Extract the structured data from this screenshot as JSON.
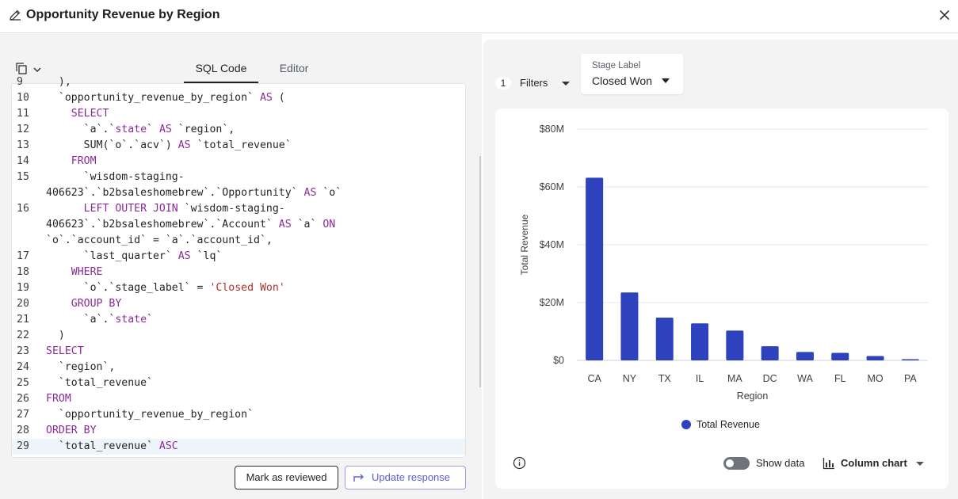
{
  "header": {
    "title": "Opportunity Revenue by Region"
  },
  "tabs": [
    {
      "label": "SQL Code",
      "active": true
    },
    {
      "label": "Editor",
      "active": false
    }
  ],
  "code": {
    "lines": [
      {
        "n": "9",
        "t": [
          [
            "  ),",
            "id"
          ]
        ]
      },
      {
        "n": "10",
        "t": [
          [
            "  `opportunity_revenue_by_region` ",
            "id"
          ],
          [
            "AS",
            "kw"
          ],
          [
            " (",
            "id"
          ]
        ]
      },
      {
        "n": "11",
        "t": [
          [
            "    ",
            "id"
          ],
          [
            "SELECT",
            "kw"
          ]
        ]
      },
      {
        "n": "12",
        "t": [
          [
            "      `a`.`",
            "id"
          ],
          [
            "state",
            "kw"
          ],
          [
            "` ",
            "id"
          ],
          [
            "AS",
            "kw"
          ],
          [
            " `region`,",
            "id"
          ]
        ]
      },
      {
        "n": "13",
        "t": [
          [
            "      SUM(`o`.`acv`) ",
            "id"
          ],
          [
            "AS",
            "kw"
          ],
          [
            " `total_revenue`",
            "id"
          ]
        ]
      },
      {
        "n": "14",
        "t": [
          [
            "    ",
            "id"
          ],
          [
            "FROM",
            "kw"
          ]
        ]
      },
      {
        "n": "15",
        "t": [
          [
            "      `wisdom-staging-",
            "id"
          ]
        ]
      },
      {
        "n": "",
        "t": [
          [
            "406623`.`b2bsaleshomebrew`.`Opportunity` ",
            "id"
          ],
          [
            "AS",
            "kw"
          ],
          [
            " `o`",
            "id"
          ]
        ]
      },
      {
        "n": "16",
        "t": [
          [
            "      ",
            "id"
          ],
          [
            "LEFT OUTER JOIN",
            "kw"
          ],
          [
            " `wisdom-staging-",
            "id"
          ]
        ]
      },
      {
        "n": "",
        "t": [
          [
            "406623`.`b2bsaleshomebrew`.`Account` ",
            "id"
          ],
          [
            "AS",
            "kw"
          ],
          [
            " `a` ",
            "id"
          ],
          [
            "ON",
            "kw"
          ]
        ]
      },
      {
        "n": "",
        "t": [
          [
            "`o`.`account_id` = `a`.`account_id`,",
            "id"
          ]
        ]
      },
      {
        "n": "17",
        "t": [
          [
            "      `last_quarter` ",
            "id"
          ],
          [
            "AS",
            "kw"
          ],
          [
            " `lq`",
            "id"
          ]
        ]
      },
      {
        "n": "18",
        "t": [
          [
            "    ",
            "id"
          ],
          [
            "WHERE",
            "kw"
          ]
        ]
      },
      {
        "n": "19",
        "t": [
          [
            "      `o`.`stage_label` = ",
            "id"
          ],
          [
            "'Closed Won'",
            "str"
          ]
        ]
      },
      {
        "n": "20",
        "t": [
          [
            "    ",
            "id"
          ],
          [
            "GROUP BY",
            "kw"
          ]
        ]
      },
      {
        "n": "21",
        "t": [
          [
            "      `a`.`",
            "id"
          ],
          [
            "state",
            "kw"
          ],
          [
            "`",
            "id"
          ]
        ]
      },
      {
        "n": "22",
        "t": [
          [
            "  )",
            "id"
          ]
        ]
      },
      {
        "n": "23",
        "t": [
          [
            "SELECT",
            "kw"
          ]
        ]
      },
      {
        "n": "24",
        "t": [
          [
            "  `region`,",
            "id"
          ]
        ]
      },
      {
        "n": "25",
        "t": [
          [
            "  `total_revenue`",
            "id"
          ]
        ]
      },
      {
        "n": "26",
        "t": [
          [
            "FROM",
            "kw"
          ]
        ]
      },
      {
        "n": "27",
        "t": [
          [
            "  `opportunity_revenue_by_region`",
            "id"
          ]
        ]
      },
      {
        "n": "28",
        "t": [
          [
            "ORDER BY",
            "kw"
          ]
        ]
      },
      {
        "n": "29",
        "t": [
          [
            "  `total_revenue` ",
            "id"
          ],
          [
            "ASC",
            "kw"
          ]
        ],
        "highlight": true
      }
    ]
  },
  "buttons": {
    "review": "Mark as reviewed",
    "update": "Update response"
  },
  "filters": {
    "count": "1",
    "label": "Filters"
  },
  "stage_filter": {
    "label": "Stage Label",
    "value": "Closed Won"
  },
  "chart_data": {
    "type": "bar",
    "categories": [
      "CA",
      "NY",
      "TX",
      "IL",
      "MA",
      "DC",
      "WA",
      "FL",
      "MO",
      "PA"
    ],
    "series": [
      {
        "name": "Total Revenue",
        "values": [
          63.2,
          23.5,
          14.8,
          12.8,
          10.3,
          4.9,
          2.9,
          2.6,
          1.5,
          0.4
        ],
        "color": "#2f42bd"
      }
    ],
    "ylim": [
      0,
      80
    ],
    "yticks": [
      0,
      20,
      40,
      60,
      80
    ],
    "ytick_labels": [
      "$0",
      "$20M",
      "$40M",
      "$60M",
      "$80M"
    ],
    "xlabel": "Region",
    "ylabel": "Total Revenue",
    "legend": "bottom-center",
    "grid": true
  },
  "footer": {
    "show_data": "Show data",
    "show_data_on": false,
    "chart_type": "Column chart"
  }
}
